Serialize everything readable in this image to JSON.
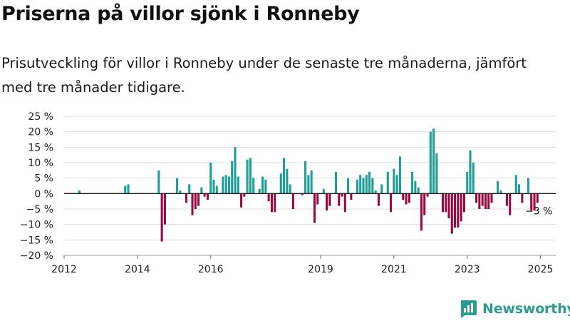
{
  "title": "Priserna på villor sjönk i Ronneby",
  "subtitle": "Prisutveckling för villor i Ronneby under de senaste tre månaderna, jämfört med tre månader tidigare.",
  "brand": {
    "name": "Newsworthy",
    "icon": "bar-chart-logo-icon"
  },
  "colors": {
    "positive": "#1f9e97",
    "negative": "#990a42",
    "grid": "#dddddd",
    "zero_line": "#222222",
    "brand": "#2a9d8f"
  },
  "chart_data": {
    "type": "bar",
    "title": "Priserna på villor sjönk i Ronneby",
    "subtitle": "Prisutveckling för villor i Ronneby under de senaste tre månaderna, jämfört med tre månader tidigare.",
    "xlabel": "",
    "ylabel": "",
    "ylim": [
      -20,
      25
    ],
    "yticks": [
      25,
      20,
      15,
      10,
      5,
      0,
      -5,
      -10,
      -15,
      -20
    ],
    "ytick_labels": [
      "25 %",
      "20 %",
      "15 %",
      "10 %",
      "5 %",
      "0 %",
      "−5 %",
      "−10 %",
      "−15 %",
      "−20 %"
    ],
    "xlim": [
      "2012-01",
      "2025-06"
    ],
    "xticks": [
      "2012-01",
      "2014-01",
      "2016-01",
      "2019-01",
      "2021-01",
      "2023-01",
      "2025-01"
    ],
    "xtick_labels": [
      "2012",
      "2014",
      "2016",
      "2019",
      "2021",
      "2023",
      "2025"
    ],
    "grid": true,
    "legend": "none",
    "annotation": {
      "x": "2024-12",
      "y": -3,
      "label": "−3 %"
    },
    "series": [
      {
        "values": [
          [
            "2012-06",
            1
          ],
          [
            "2013-09",
            2.5
          ],
          [
            "2013-10",
            3
          ],
          [
            "2014-08",
            7.5
          ],
          [
            "2014-09",
            -15.5
          ],
          [
            "2014-10",
            -10
          ],
          [
            "2015-02",
            5
          ],
          [
            "2015-03",
            1
          ],
          [
            "2015-05",
            -3
          ],
          [
            "2015-06",
            3
          ],
          [
            "2015-07",
            -7
          ],
          [
            "2015-08",
            -5
          ],
          [
            "2015-09",
            -4
          ],
          [
            "2015-10",
            2
          ],
          [
            "2015-11",
            -1
          ],
          [
            "2015-12",
            -2
          ],
          [
            "2016-01",
            10
          ],
          [
            "2016-02",
            4.5
          ],
          [
            "2016-03",
            2.5
          ],
          [
            "2016-05",
            5.5
          ],
          [
            "2016-06",
            6
          ],
          [
            "2016-07",
            5.5
          ],
          [
            "2016-08",
            10.5
          ],
          [
            "2016-09",
            15
          ],
          [
            "2016-10",
            5.5
          ],
          [
            "2016-11",
            -4.5
          ],
          [
            "2016-12",
            -1
          ],
          [
            "2017-01",
            11
          ],
          [
            "2017-02",
            11.5
          ],
          [
            "2017-03",
            5
          ],
          [
            "2017-05",
            1.5
          ],
          [
            "2017-06",
            5.5
          ],
          [
            "2017-07",
            4.5
          ],
          [
            "2017-08",
            -2.5
          ],
          [
            "2017-09",
            -6
          ],
          [
            "2017-10",
            -6
          ],
          [
            "2017-12",
            6.5
          ],
          [
            "2018-01",
            11.5
          ],
          [
            "2018-02",
            8
          ],
          [
            "2018-03",
            3
          ],
          [
            "2018-04",
            -5
          ],
          [
            "2018-07",
            -0.5
          ],
          [
            "2018-08",
            10.5
          ],
          [
            "2018-09",
            6
          ],
          [
            "2018-10",
            7.5
          ],
          [
            "2018-11",
            -9.5
          ],
          [
            "2018-12",
            -3.5
          ],
          [
            "2019-02",
            1.5
          ],
          [
            "2019-03",
            -5.5
          ],
          [
            "2019-04",
            -4
          ],
          [
            "2019-06",
            7
          ],
          [
            "2019-07",
            -4
          ],
          [
            "2019-08",
            -1
          ],
          [
            "2019-09",
            -6
          ],
          [
            "2019-10",
            5
          ],
          [
            "2019-11",
            -2
          ],
          [
            "2020-01",
            4.5
          ],
          [
            "2020-02",
            6
          ],
          [
            "2020-03",
            5
          ],
          [
            "2020-04",
            6
          ],
          [
            "2020-05",
            7
          ],
          [
            "2020-06",
            5
          ],
          [
            "2020-07",
            1
          ],
          [
            "2020-08",
            -4
          ],
          [
            "2020-09",
            3
          ],
          [
            "2020-11",
            7
          ],
          [
            "2020-12",
            -6
          ],
          [
            "2021-01",
            8
          ],
          [
            "2021-02",
            6
          ],
          [
            "2021-03",
            12
          ],
          [
            "2021-04",
            -2
          ],
          [
            "2021-05",
            -3.5
          ],
          [
            "2021-06",
            -3
          ],
          [
            "2021-07",
            7
          ],
          [
            "2021-08",
            4
          ],
          [
            "2021-09",
            2
          ],
          [
            "2021-10",
            -12
          ],
          [
            "2021-11",
            -7
          ],
          [
            "2021-12",
            -1
          ],
          [
            "2022-01",
            20
          ],
          [
            "2022-02",
            21
          ],
          [
            "2022-03",
            13
          ],
          [
            "2022-05",
            -6
          ],
          [
            "2022-06",
            -6
          ],
          [
            "2022-07",
            -8
          ],
          [
            "2022-08",
            -13
          ],
          [
            "2022-09",
            -11
          ],
          [
            "2022-10",
            -11
          ],
          [
            "2022-11",
            -9
          ],
          [
            "2022-12",
            -6
          ],
          [
            "2023-01",
            7
          ],
          [
            "2023-02",
            14
          ],
          [
            "2023-03",
            10
          ],
          [
            "2023-04",
            -3
          ],
          [
            "2023-05",
            -5
          ],
          [
            "2023-06",
            -4
          ],
          [
            "2023-07",
            -5
          ],
          [
            "2023-08",
            -5
          ],
          [
            "2023-09",
            -3
          ],
          [
            "2023-11",
            4
          ],
          [
            "2023-12",
            1
          ],
          [
            "2024-02",
            -4
          ],
          [
            "2024-03",
            -7
          ],
          [
            "2024-05",
            6
          ],
          [
            "2024-06",
            3
          ],
          [
            "2024-07",
            -3
          ],
          [
            "2024-09",
            5
          ],
          [
            "2024-10",
            -5.5
          ],
          [
            "2024-11",
            -5.5
          ],
          [
            "2024-12",
            -3
          ]
        ]
      }
    ]
  }
}
